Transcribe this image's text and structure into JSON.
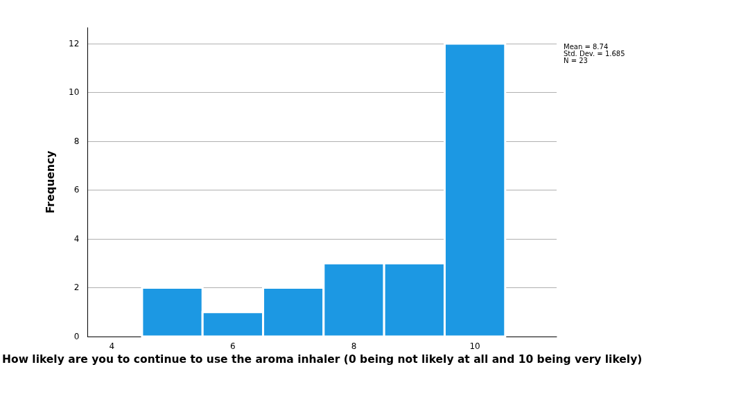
{
  "chart_data": {
    "type": "histogram",
    "xlabel": "How likely are you to continue to use the aroma inhaler (0 being not likely at all and 10 being very likely)",
    "ylabel": "Frequency",
    "bins": [
      4.5,
      5.5,
      6.5,
      7.5,
      8.5,
      9.5,
      10.5
    ],
    "values": [
      2,
      1,
      2,
      3,
      3,
      12
    ],
    "color": "#1c98e3",
    "xlim": [
      3.6,
      11.35
    ],
    "xticks": [
      4,
      6,
      8,
      10
    ],
    "ylim": [
      0,
      12.65
    ],
    "yticks": [
      0,
      2,
      4,
      6,
      8,
      10,
      12
    ],
    "grid": "y",
    "annotations": [
      "Mean = 8.74",
      "Std. Dev. = 1.685",
      "N = 23"
    ]
  }
}
